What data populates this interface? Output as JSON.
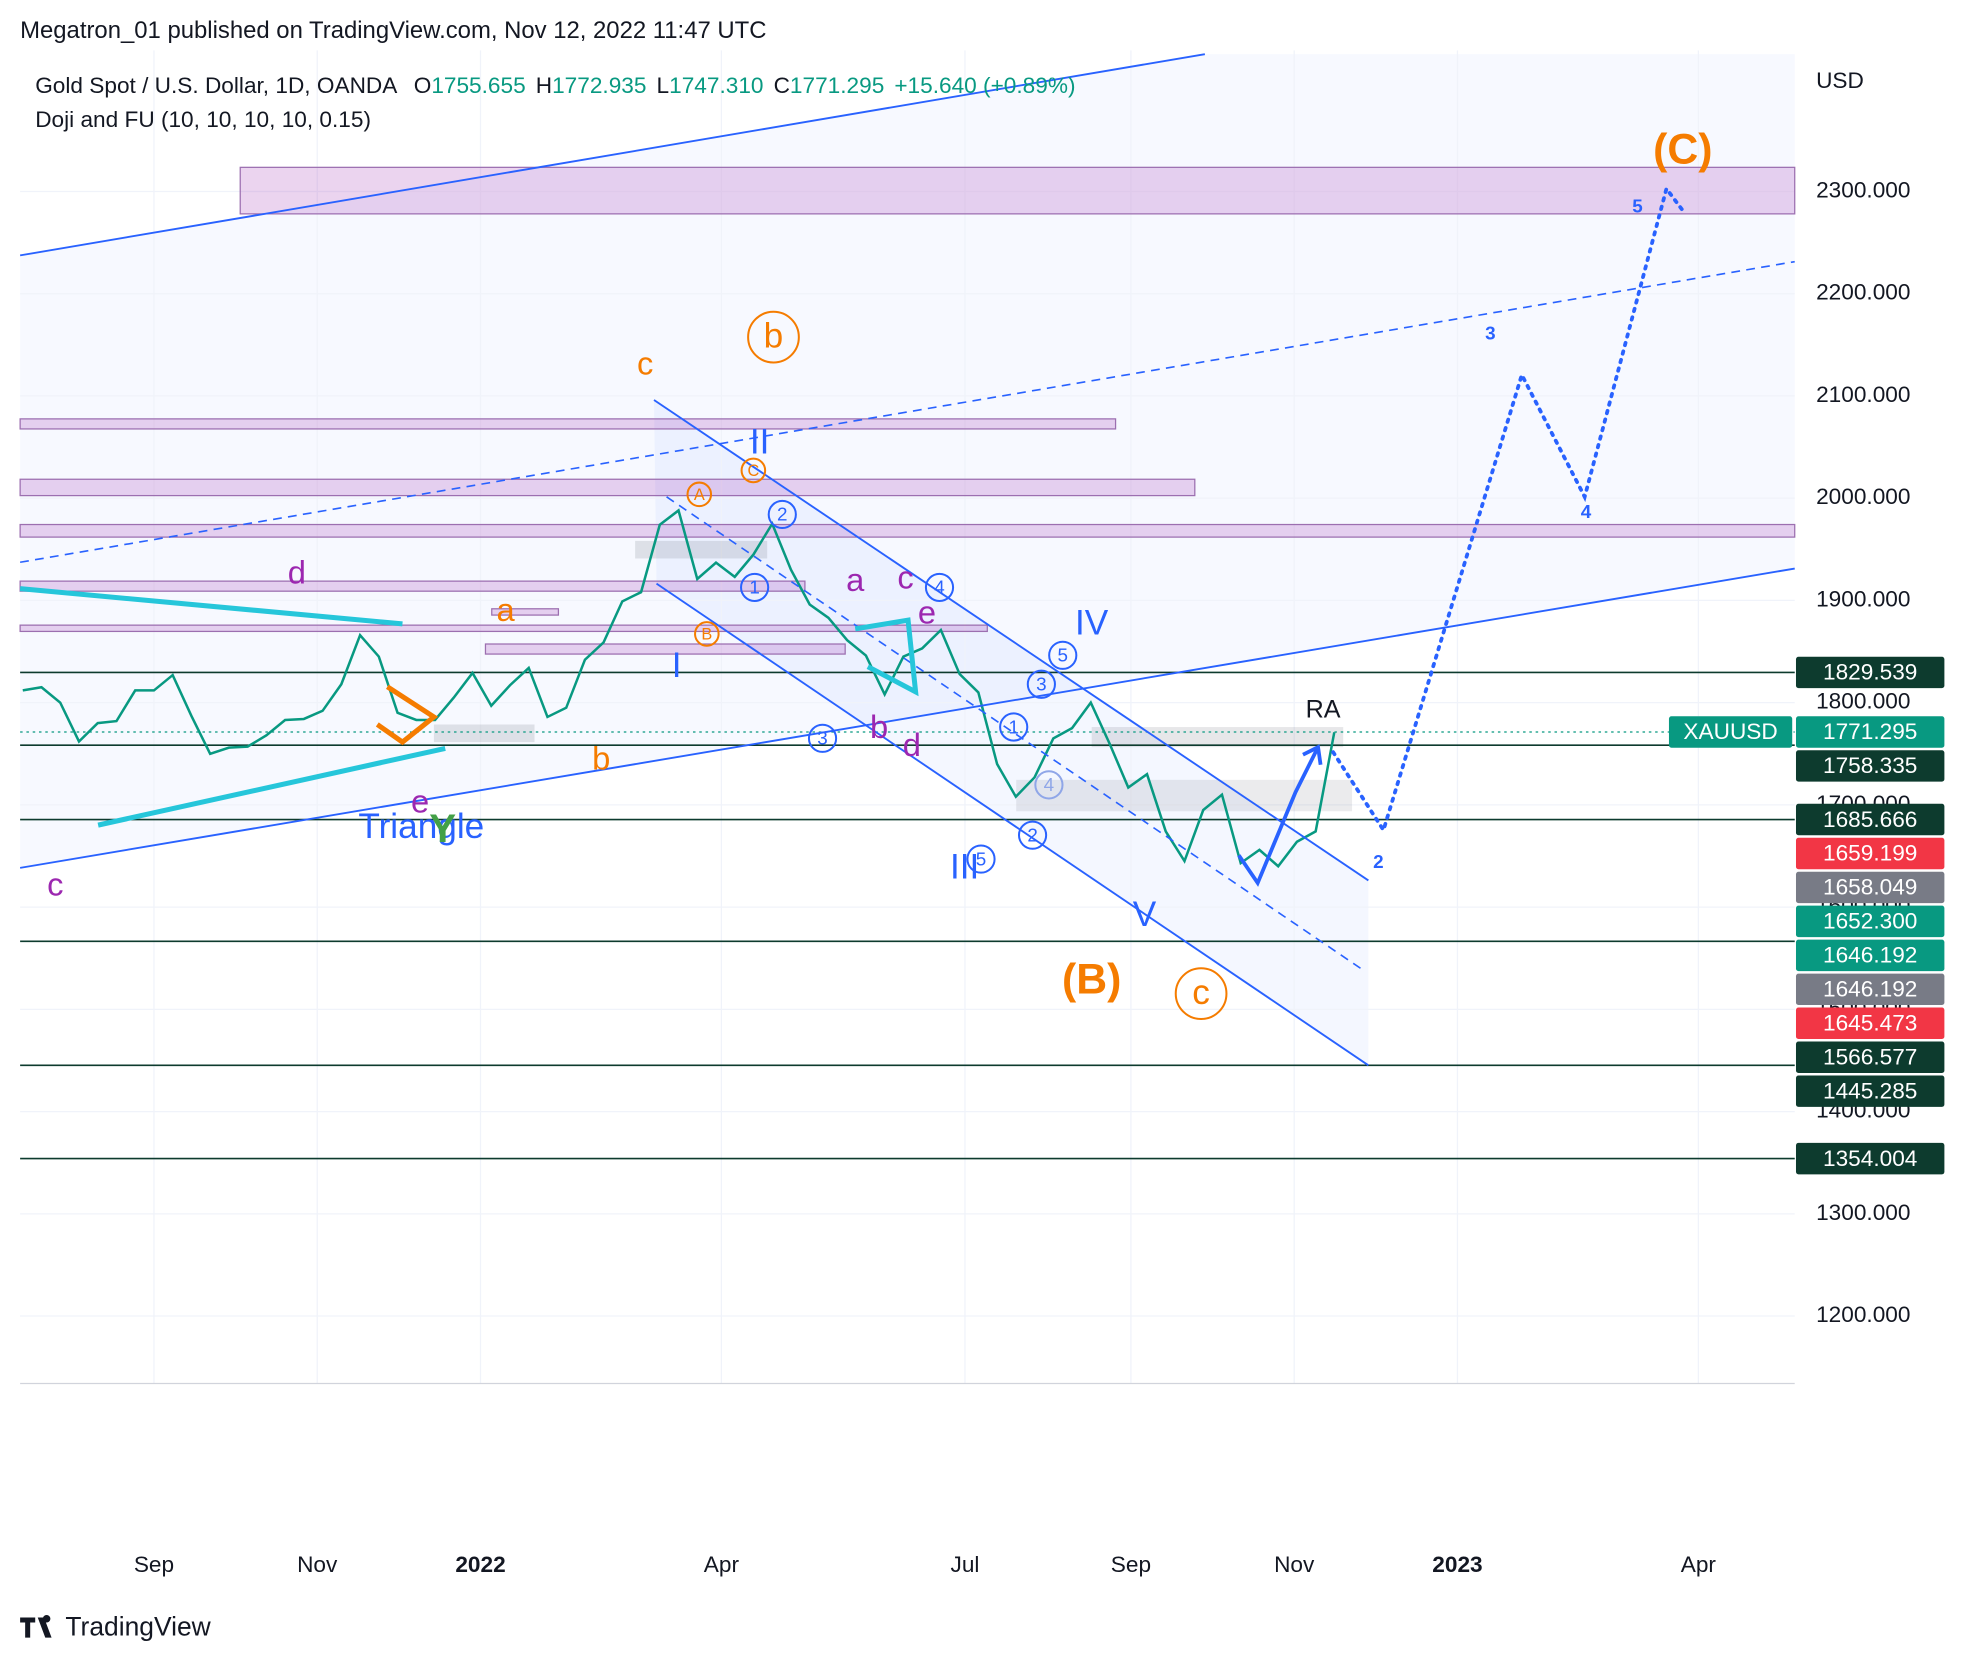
{
  "header": {
    "byline": "Megatron_01 published on TradingView.com, Nov 12, 2022 11:47 UTC",
    "symbol": "Gold Spot / U.S. Dollar, 1D, OANDA",
    "ohlc": [
      {
        "key": "O",
        "value": "1755.655"
      },
      {
        "key": "H",
        "value": "1772.935"
      },
      {
        "key": "L",
        "value": "1747.310"
      },
      {
        "key": "C",
        "value": "1771.295"
      }
    ],
    "change": "+15.640 (+0.89%)",
    "indicator": "Doji and FU (10, 10, 10, 10, 0.15)"
  },
  "currency": "USD",
  "footer": "TradingView",
  "chart_data": {
    "type": "line",
    "color": "#089981",
    "grid": true,
    "x": [
      -49,
      -42,
      -35,
      -28,
      -21,
      -14,
      -7,
      0,
      7,
      14,
      21,
      28,
      35,
      42,
      49,
      56,
      63,
      70,
      77,
      84,
      91,
      98,
      105,
      112,
      119,
      126,
      133,
      140,
      147,
      154,
      161,
      168,
      175,
      182,
      189,
      196,
      203,
      210,
      217,
      224,
      231,
      238,
      245,
      252,
      259,
      266,
      273,
      280,
      287,
      294,
      301,
      308,
      315,
      322,
      329,
      336,
      343,
      350,
      357,
      364,
      371,
      378,
      385,
      392,
      399,
      406,
      413,
      420,
      427,
      434,
      441
    ],
    "values": [
      1812,
      1815,
      1800,
      1762,
      1780,
      1782,
      1812,
      1812,
      1827,
      1787,
      1750,
      1756,
      1757,
      1768,
      1783,
      1784,
      1792,
      1818,
      1866,
      1845,
      1790,
      1783,
      1783,
      1805,
      1829,
      1797,
      1817,
      1834,
      1786,
      1795,
      1842,
      1859,
      1899,
      1908,
      1974,
      1988,
      1921,
      1937,
      1923,
      1945,
      1975,
      1930,
      1896,
      1883,
      1861,
      1846,
      1808,
      1845,
      1853,
      1871,
      1828,
      1810,
      1740,
      1708,
      1727,
      1765,
      1775,
      1800,
      1760,
      1717,
      1730,
      1674,
      1645,
      1695,
      1710,
      1643,
      1656,
      1640,
      1664,
      1674,
      1771
    ],
    "xlim": [
      -50,
      613
    ],
    "xticks": [
      {
        "value": 0,
        "label": "Sep"
      },
      {
        "value": 61,
        "label": "Nov"
      },
      {
        "value": 122,
        "label": "2022"
      },
      {
        "value": 212,
        "label": "Apr"
      },
      {
        "value": 303,
        "label": "Jul"
      },
      {
        "value": 365,
        "label": "Sep"
      },
      {
        "value": 426,
        "label": "Nov"
      },
      {
        "value": 487,
        "label": "2023"
      },
      {
        "value": 577,
        "label": "Apr"
      }
    ],
    "ylim": [
      1134,
      2438
    ],
    "yticks": [
      {
        "value": 1200,
        "label": "1200.000"
      },
      {
        "value": 1300,
        "label": "1300.000"
      },
      {
        "value": 1400,
        "label": "1400.000"
      },
      {
        "value": 1500,
        "label": "1500.000"
      },
      {
        "value": 1600,
        "label": "1600.000"
      },
      {
        "value": 1700,
        "label": "1700.000"
      },
      {
        "value": 1800,
        "label": "1800.000"
      },
      {
        "value": 1900,
        "label": "1900.000"
      },
      {
        "value": 2000,
        "label": "2000.000"
      },
      {
        "value": 2100,
        "label": "2100.000"
      },
      {
        "value": 2200,
        "label": "2200.000"
      },
      {
        "value": 2300,
        "label": "2300.000"
      }
    ],
    "symbol_tag": "XAUUSD",
    "price_tags": [
      {
        "value": 1829.539,
        "label": "1829.539",
        "color": "#0d3b2e",
        "line": "solid"
      },
      {
        "value": 1771.295,
        "label": "1771.295",
        "color": "#089981",
        "line": "dotted"
      },
      {
        "value": 1758.335,
        "label": "1758.335",
        "color": "#0d3b2e",
        "line": "solid"
      },
      {
        "value": 1685.666,
        "label": "1685.666",
        "color": "#0d3b2e",
        "line": "solid"
      },
      {
        "value": 1659.199,
        "label": "1659.199",
        "color": "#f23645"
      },
      {
        "value": 1658.049,
        "label": "1658.049",
        "color": "#787b86"
      },
      {
        "value": 1652.3,
        "label": "1652.300",
        "color": "#089981"
      },
      {
        "value": 1646.192,
        "label": "1646.192",
        "color": "#089981"
      },
      {
        "value": 1646.192,
        "label": "1646.192",
        "color": "#787b86"
      },
      {
        "value": 1645.473,
        "label": "1645.473",
        "color": "#f23645"
      },
      {
        "value": 1566.577,
        "label": "1566.577",
        "color": "#0d3b2e",
        "line": "solid"
      },
      {
        "value": 1445.285,
        "label": "1445.285",
        "color": "#0d3b2e",
        "line": "solid"
      },
      {
        "value": 1354.004,
        "label": "1354.004",
        "color": "#0d3b2e",
        "line": "solid"
      }
    ],
    "annotations": [
      "(C)",
      "(B)",
      "b",
      "c",
      "c",
      "II",
      "I",
      "IV",
      "III",
      "V",
      "Triangle",
      "Y",
      "d",
      "e",
      "c",
      "a",
      "b",
      "a",
      "c",
      "e",
      "b",
      "d",
      "RA",
      "3",
      "4",
      "5",
      "2",
      "1",
      "2",
      "3",
      "4",
      "5",
      "1",
      "2",
      "3",
      "4",
      "5",
      "A",
      "B",
      "C"
    ]
  }
}
